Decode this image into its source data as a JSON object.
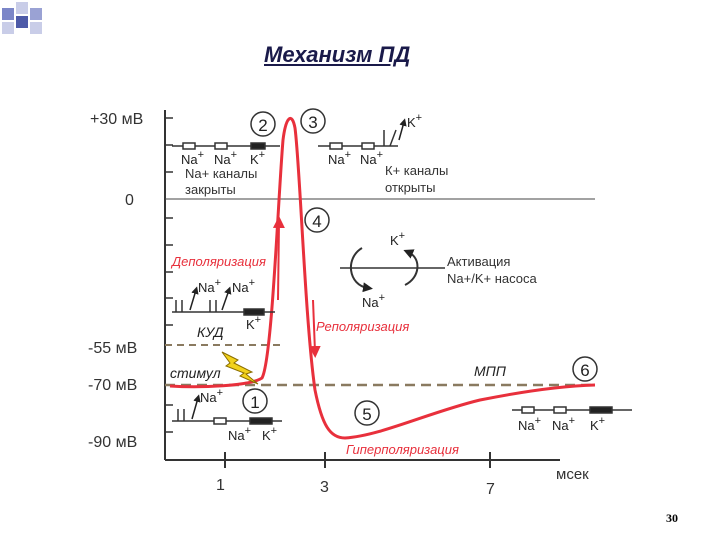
{
  "title": "Механизм ПД",
  "page_number": "30",
  "axis": {
    "y_ticks": [
      "+30 мВ",
      "0",
      "-55 мВ",
      "-70 мВ",
      "-90 мВ"
    ],
    "x_ticks": [
      "1",
      "3",
      "7"
    ],
    "x_unit": "мсек"
  },
  "stages": [
    "1",
    "2",
    "3",
    "4",
    "5",
    "6"
  ],
  "labels": {
    "na_channels_closed": [
      "Na+ каналы",
      "закрыты"
    ],
    "k_channels_open": [
      "К+ каналы",
      "открыты"
    ],
    "pump_activation": [
      "Активация",
      "Na+/K+ насоса"
    ],
    "depolarization": "Деполяризация",
    "repolarization": "Реполяризация",
    "hyperpolarization": "Гиперполяризация",
    "kud": "КУД",
    "stimulus": "стимул",
    "mpp": "МПП"
  },
  "ions": {
    "na": "Na",
    "k": "K",
    "plus": "+"
  },
  "colors": {
    "curve": "#e8303c",
    "axis": "#333333",
    "dashed": "#8a7a60",
    "bolt": "#f2d21c",
    "title": "#1a1a4a"
  }
}
